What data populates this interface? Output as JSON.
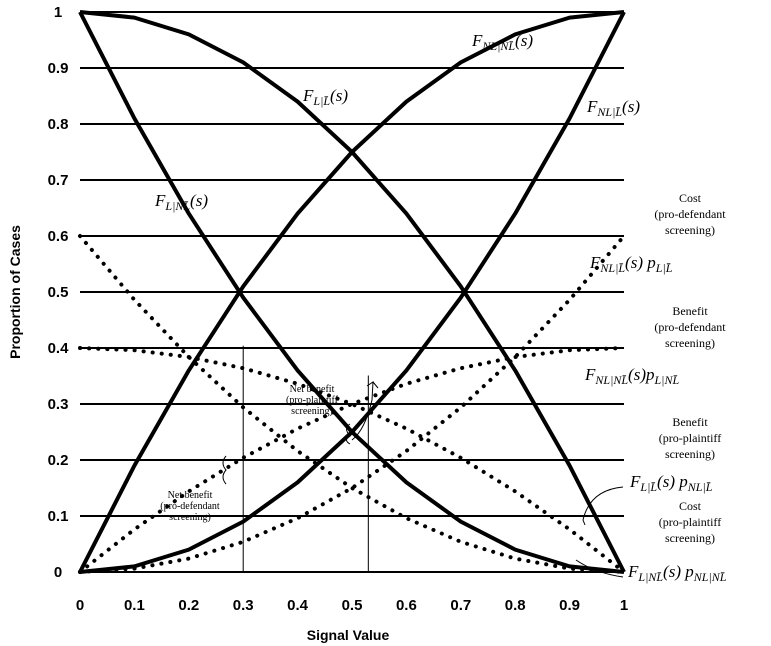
{
  "chart_data": {
    "type": "line",
    "title": "",
    "xlabel": "Signal Value",
    "ylabel": "Proportion of Cases",
    "xlim": [
      0,
      1
    ],
    "ylim": [
      0,
      1
    ],
    "x_ticks": [
      "0",
      "0.1",
      "0.2",
      "0.3",
      "0.4",
      "0.5",
      "0.6",
      "0.7",
      "0.8",
      "0.9",
      "1"
    ],
    "y_ticks": [
      "0",
      "0.1",
      "0.2",
      "0.3",
      "0.4",
      "0.5",
      "0.6",
      "0.7",
      "0.8",
      "0.9",
      "1"
    ],
    "grid": "horizontal",
    "series": [
      {
        "name": "F_{L|L}(s)",
        "style": "solid",
        "x": [
          0,
          0.1,
          0.2,
          0.3,
          0.4,
          0.5,
          0.6,
          0.7,
          0.8,
          0.9,
          1
        ],
        "y": [
          1,
          0.99,
          0.96,
          0.91,
          0.84,
          0.75,
          0.64,
          0.51,
          0.36,
          0.19,
          0
        ]
      },
      {
        "name": "F_{L|NL}(s)",
        "style": "solid",
        "x": [
          0,
          0.1,
          0.2,
          0.3,
          0.4,
          0.5,
          0.6,
          0.7,
          0.8,
          0.9,
          1
        ],
        "y": [
          1,
          0.81,
          0.64,
          0.49,
          0.36,
          0.25,
          0.16,
          0.09,
          0.04,
          0.01,
          0
        ]
      },
      {
        "name": "F_{NL|NL}(s)",
        "style": "solid",
        "x": [
          0,
          0.1,
          0.2,
          0.3,
          0.4,
          0.5,
          0.6,
          0.7,
          0.8,
          0.9,
          1
        ],
        "y": [
          0,
          0.19,
          0.36,
          0.51,
          0.64,
          0.75,
          0.84,
          0.91,
          0.96,
          0.99,
          1
        ]
      },
      {
        "name": "F_{NL|L}(s)",
        "style": "solid",
        "x": [
          0,
          0.1,
          0.2,
          0.3,
          0.4,
          0.5,
          0.6,
          0.7,
          0.8,
          0.9,
          1
        ],
        "y": [
          0,
          0.01,
          0.04,
          0.09,
          0.16,
          0.25,
          0.36,
          0.49,
          0.64,
          0.81,
          1
        ]
      },
      {
        "name": "F_{NL|L}(s) p_{L|L}",
        "style": "dotted",
        "x": [
          0,
          0.1,
          0.2,
          0.3,
          0.4,
          0.5,
          0.6,
          0.7,
          0.8,
          0.9,
          1
        ],
        "y": [
          0,
          0.006,
          0.024,
          0.054,
          0.096,
          0.15,
          0.216,
          0.294,
          0.384,
          0.486,
          0.6
        ]
      },
      {
        "name": "F_{NL|NL}(s) p_{L|NL}",
        "style": "dotted",
        "x": [
          0,
          0.1,
          0.2,
          0.3,
          0.4,
          0.5,
          0.6,
          0.7,
          0.8,
          0.9,
          1
        ],
        "y": [
          0,
          0.076,
          0.144,
          0.204,
          0.256,
          0.3,
          0.336,
          0.364,
          0.384,
          0.396,
          0.4
        ]
      },
      {
        "name": "F_{L|L}(s) p_{NL|L}",
        "style": "dotted",
        "x": [
          0,
          0.1,
          0.2,
          0.3,
          0.4,
          0.5,
          0.6,
          0.7,
          0.8,
          0.9,
          1
        ],
        "y": [
          0.4,
          0.396,
          0.384,
          0.364,
          0.336,
          0.3,
          0.256,
          0.204,
          0.144,
          0.076,
          0
        ]
      },
      {
        "name": "F_{L|NL}(s) p_{NL|NL}",
        "style": "dotted",
        "x": [
          0,
          0.1,
          0.2,
          0.3,
          0.4,
          0.5,
          0.6,
          0.7,
          0.8,
          0.9,
          1
        ],
        "y": [
          0.6,
          0.486,
          0.384,
          0.294,
          0.216,
          0.15,
          0.096,
          0.054,
          0.024,
          0.006,
          0
        ]
      }
    ],
    "annotations": {
      "cost_pro_defendant": [
        "Cost",
        "(pro-defendant",
        "screening)"
      ],
      "benefit_pro_defendant": [
        "Benefit",
        "(pro-defendant",
        "screening)"
      ],
      "benefit_pro_plaintiff": [
        "Benefit",
        "(pro-plaintiff",
        "screening)"
      ],
      "cost_pro_plaintiff": [
        "Cost",
        "(pro-plaintiff",
        "screening)"
      ],
      "net_benefit_pro_plaintiff": [
        "Net benefit",
        "(pro-plaintiff",
        "screening)"
      ],
      "net_benefit_pro_defendant": [
        "Net benefit",
        "(pro-defendant",
        "screening)"
      ]
    },
    "reference_x": [
      0.3,
      0.53
    ]
  }
}
